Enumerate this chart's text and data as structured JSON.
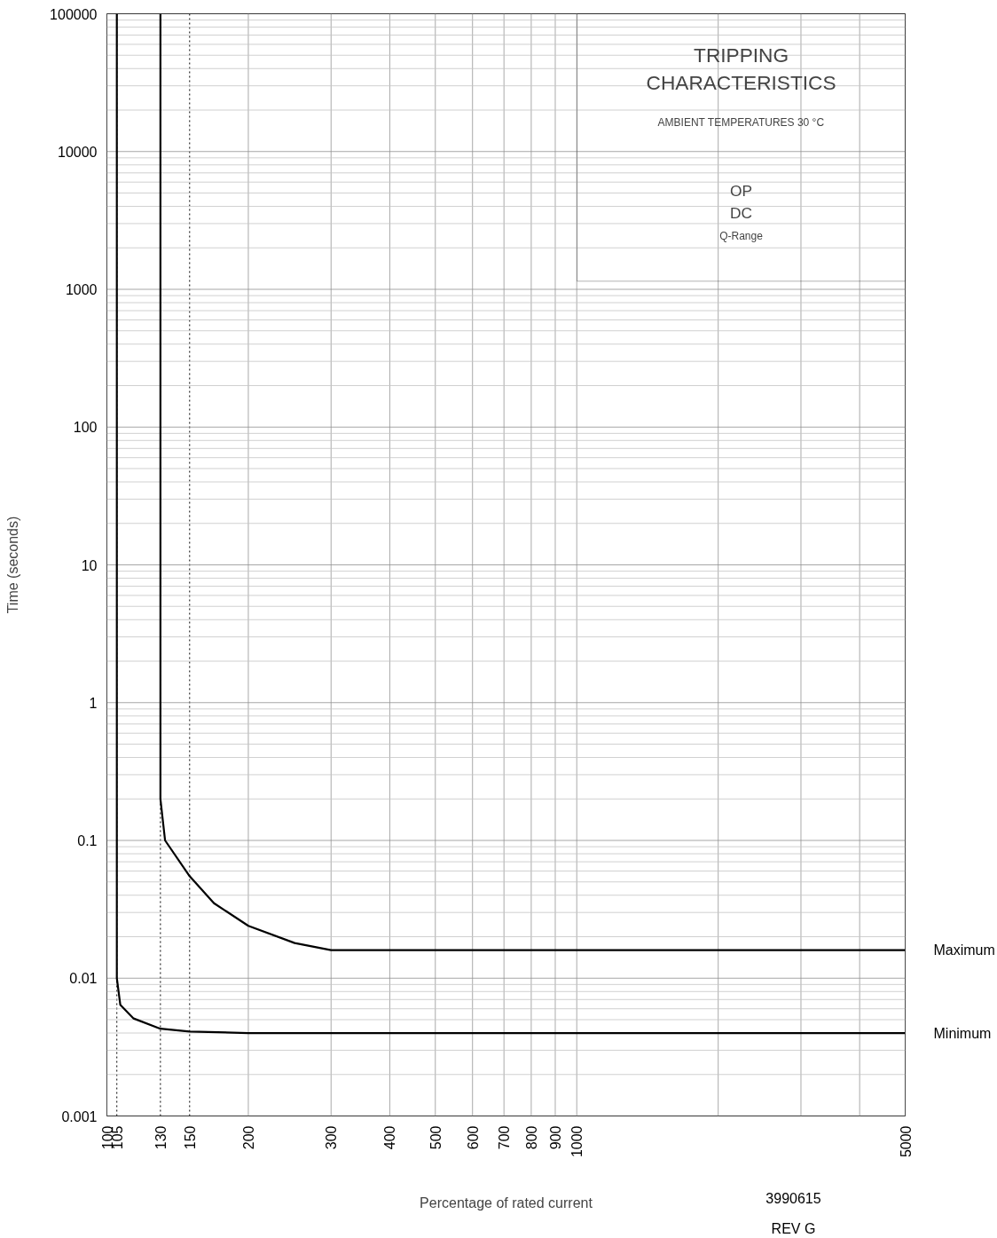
{
  "chart_data": {
    "type": "line",
    "title": "TRIPPING CHARACTERISTICS",
    "xlabel": "Percentage of rated current",
    "ylabel": "Time (seconds)",
    "annotations": [
      "AMBIENT TEMPERATURES 30 °C",
      "OP",
      "DC",
      "Q-Range",
      "3990615",
      "REV G"
    ],
    "log": "xy",
    "grid": true,
    "legend": false,
    "marker": "none",
    "line_style": "solid",
    "xlim": [
      100,
      5000
    ],
    "ylim": [
      0.001,
      100000
    ],
    "xticks": [
      100,
      105,
      130,
      150,
      200,
      300,
      400,
      500,
      600,
      700,
      800,
      900,
      1000,
      {
        "value": 2000,
        "label": null
      },
      {
        "value": 3000,
        "label": null
      },
      {
        "value": 4000,
        "label": null
      },
      5000
    ],
    "yticks": [
      0.001,
      0.01,
      0.1,
      1,
      10,
      100,
      1000,
      10000,
      100000
    ],
    "series": [
      {
        "name": "Maximum",
        "color": "#000000",
        "x": [
          130,
          130,
          133,
          150,
          169,
          200,
          251,
          300,
          5000
        ],
        "values": [
          100000,
          0.2,
          0.1,
          0.055,
          0.035,
          0.024,
          0.018,
          0.016,
          0.016
        ]
      },
      {
        "name": "Minimum",
        "color": "#000000",
        "x": [
          105,
          105,
          106.8,
          114,
          130,
          150,
          200,
          5000
        ],
        "values": [
          100000,
          0.01,
          0.0064,
          0.0051,
          0.0043,
          0.0041,
          0.004,
          0.004
        ]
      }
    ]
  }
}
